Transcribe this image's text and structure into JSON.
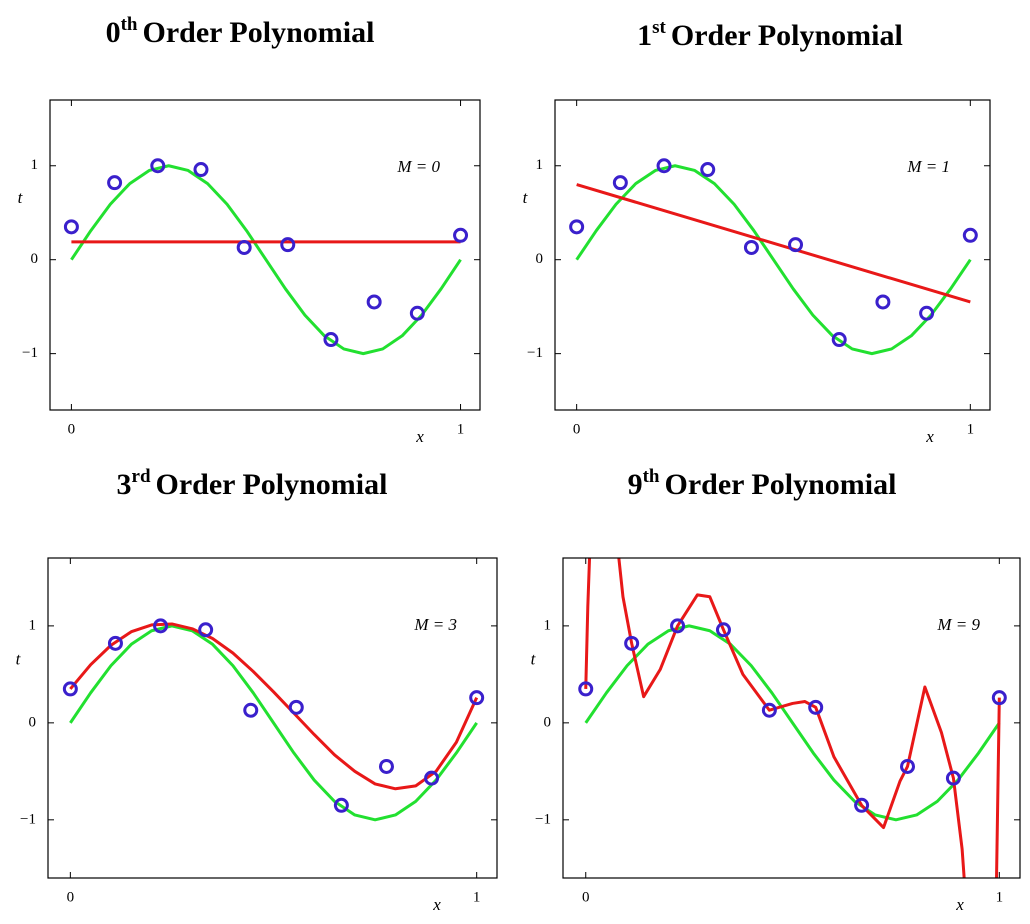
{
  "chart_data": [
    {
      "type": "line",
      "title": [
        "0",
        "th",
        "Order Polynomial"
      ],
      "annotation": "M = 0",
      "xlabel": "x",
      "ylabel": "t",
      "xlim": [
        -0.055,
        1.05
      ],
      "ylim": [
        -1.6,
        1.7
      ],
      "xticks": [
        0,
        1
      ],
      "yticks": [
        {
          "value": -1,
          "label": "−1"
        },
        0,
        1
      ],
      "series": [
        {
          "mode": "lines",
          "color": "#22e030",
          "x": [
            0,
            0.05,
            0.1,
            0.15,
            0.2,
            0.25,
            0.3,
            0.35,
            0.4,
            0.45,
            0.5,
            0.55,
            0.6,
            0.65,
            0.7,
            0.75,
            0.8,
            0.85,
            0.9,
            0.95,
            1
          ],
          "values": [
            0,
            0.31,
            0.59,
            0.81,
            0.95,
            1,
            0.95,
            0.81,
            0.59,
            0.31,
            0,
            -0.31,
            -0.59,
            -0.81,
            -0.95,
            -1,
            -0.95,
            -0.81,
            -0.59,
            -0.31,
            0
          ]
        },
        {
          "mode": "lines",
          "color": "#e81818",
          "x": [
            0,
            1
          ],
          "values": [
            0.19,
            0.19
          ]
        },
        {
          "mode": "markers",
          "color": "#3a20cc",
          "x": [
            0,
            0.111,
            0.222,
            0.333,
            0.444,
            0.556,
            0.667,
            0.778,
            0.889,
            1
          ],
          "values": [
            0.35,
            0.82,
            1.0,
            0.96,
            0.13,
            0.16,
            -0.85,
            -0.45,
            -0.57,
            0.26
          ]
        }
      ]
    },
    {
      "type": "line",
      "title": [
        "1",
        "st",
        "Order Polynomial"
      ],
      "annotation": "M = 1",
      "xlabel": "x",
      "ylabel": "t",
      "xlim": [
        -0.055,
        1.05
      ],
      "ylim": [
        -1.6,
        1.7
      ],
      "xticks": [
        0,
        1
      ],
      "yticks": [
        {
          "value": -1,
          "label": "−1"
        },
        0,
        1
      ],
      "series": [
        {
          "mode": "lines",
          "color": "#22e030",
          "x": [
            0,
            0.05,
            0.1,
            0.15,
            0.2,
            0.25,
            0.3,
            0.35,
            0.4,
            0.45,
            0.5,
            0.55,
            0.6,
            0.65,
            0.7,
            0.75,
            0.8,
            0.85,
            0.9,
            0.95,
            1
          ],
          "values": [
            0,
            0.31,
            0.59,
            0.81,
            0.95,
            1,
            0.95,
            0.81,
            0.59,
            0.31,
            0,
            -0.31,
            -0.59,
            -0.81,
            -0.95,
            -1,
            -0.95,
            -0.81,
            -0.59,
            -0.31,
            0
          ]
        },
        {
          "mode": "lines",
          "color": "#e81818",
          "x": [
            0,
            1
          ],
          "values": [
            0.8,
            -0.45
          ]
        },
        {
          "mode": "markers",
          "color": "#3a20cc",
          "x": [
            0,
            0.111,
            0.222,
            0.333,
            0.444,
            0.556,
            0.667,
            0.778,
            0.889,
            1
          ],
          "values": [
            0.35,
            0.82,
            1.0,
            0.96,
            0.13,
            0.16,
            -0.85,
            -0.45,
            -0.57,
            0.26
          ]
        }
      ]
    },
    {
      "type": "line",
      "title": [
        "3",
        "rd",
        "Order Polynomial"
      ],
      "annotation": "M = 3",
      "xlabel": "x",
      "ylabel": "t",
      "xlim": [
        -0.055,
        1.05
      ],
      "ylim": [
        -1.6,
        1.7
      ],
      "xticks": [
        0,
        1
      ],
      "yticks": [
        {
          "value": -1,
          "label": "−1"
        },
        0,
        1
      ],
      "series": [
        {
          "mode": "lines",
          "color": "#22e030",
          "x": [
            0,
            0.05,
            0.1,
            0.15,
            0.2,
            0.25,
            0.3,
            0.35,
            0.4,
            0.45,
            0.5,
            0.55,
            0.6,
            0.65,
            0.7,
            0.75,
            0.8,
            0.85,
            0.9,
            0.95,
            1
          ],
          "values": [
            0,
            0.31,
            0.59,
            0.81,
            0.95,
            1,
            0.95,
            0.81,
            0.59,
            0.31,
            0,
            -0.31,
            -0.59,
            -0.81,
            -0.95,
            -1,
            -0.95,
            -0.81,
            -0.59,
            -0.31,
            0
          ]
        },
        {
          "mode": "lines",
          "color": "#e81818",
          "x": [
            0,
            0.05,
            0.1,
            0.15,
            0.2,
            0.25,
            0.3,
            0.35,
            0.4,
            0.45,
            0.5,
            0.55,
            0.6,
            0.65,
            0.7,
            0.75,
            0.8,
            0.85,
            0.9,
            0.95,
            1
          ],
          "values": [
            0.35,
            0.6,
            0.8,
            0.94,
            1.01,
            1.02,
            0.97,
            0.87,
            0.72,
            0.53,
            0.32,
            0.1,
            -0.12,
            -0.33,
            -0.5,
            -0.63,
            -0.68,
            -0.65,
            -0.5,
            -0.2,
            0.26
          ]
        },
        {
          "mode": "markers",
          "color": "#3a20cc",
          "x": [
            0,
            0.111,
            0.222,
            0.333,
            0.444,
            0.556,
            0.667,
            0.778,
            0.889,
            1
          ],
          "values": [
            0.35,
            0.82,
            1.0,
            0.96,
            0.13,
            0.16,
            -0.85,
            -0.45,
            -0.57,
            0.26
          ]
        }
      ]
    },
    {
      "type": "line",
      "title": [
        "9",
        "th",
        "Order Polynomial"
      ],
      "annotation": "M = 9",
      "xlabel": "x",
      "ylabel": "t",
      "xlim": [
        -0.055,
        1.05
      ],
      "ylim": [
        -1.6,
        1.7
      ],
      "xticks": [
        0,
        1
      ],
      "yticks": [
        {
          "value": -1,
          "label": "−1"
        },
        0,
        1
      ],
      "series": [
        {
          "mode": "lines",
          "color": "#22e030",
          "x": [
            0,
            0.05,
            0.1,
            0.15,
            0.2,
            0.25,
            0.3,
            0.35,
            0.4,
            0.45,
            0.5,
            0.55,
            0.6,
            0.65,
            0.7,
            0.75,
            0.8,
            0.85,
            0.9,
            0.95,
            1
          ],
          "values": [
            0,
            0.31,
            0.59,
            0.81,
            0.95,
            1,
            0.95,
            0.81,
            0.59,
            0.31,
            0,
            -0.31,
            -0.59,
            -0.81,
            -0.95,
            -1,
            -0.95,
            -0.81,
            -0.59,
            -0.31,
            0
          ]
        },
        {
          "mode": "lines",
          "color": "#e81818",
          "x": [
            0,
            0.005,
            0.02,
            0.06,
            0.09,
            0.111,
            0.14,
            0.18,
            0.222,
            0.27,
            0.3,
            0.333,
            0.38,
            0.444,
            0.5,
            0.53,
            0.556,
            0.6,
            0.667,
            0.72,
            0.76,
            0.778,
            0.82,
            0.86,
            0.889,
            0.91,
            0.93,
            0.99,
            1
          ],
          "values": [
            0.35,
            1.2,
            3,
            2.5,
            1.3,
            0.82,
            0.27,
            0.55,
            1.0,
            1.32,
            1.3,
            0.96,
            0.5,
            0.13,
            0.2,
            0.22,
            0.16,
            -0.35,
            -0.85,
            -1.08,
            -0.6,
            -0.45,
            0.37,
            -0.1,
            -0.57,
            -1.3,
            -2.5,
            -2.5,
            0.26
          ]
        },
        {
          "mode": "markers",
          "color": "#3a20cc",
          "x": [
            0,
            0.111,
            0.222,
            0.333,
            0.444,
            0.556,
            0.667,
            0.778,
            0.889,
            1
          ],
          "values": [
            0.35,
            0.82,
            1.0,
            0.96,
            0.13,
            0.16,
            -0.85,
            -0.45,
            -0.57,
            0.26
          ]
        }
      ]
    }
  ]
}
